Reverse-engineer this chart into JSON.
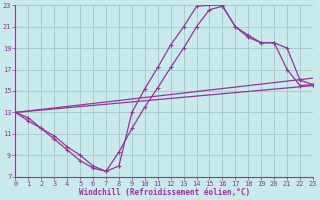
{
  "xlabel": "Windchill (Refroidissement éolien,°C)",
  "bg_color": "#c8eaea",
  "grid_color": "#aacccc",
  "line_color": "#993399",
  "xlim": [
    0,
    23
  ],
  "ylim": [
    7,
    23
  ],
  "xticks": [
    0,
    1,
    2,
    3,
    4,
    5,
    6,
    7,
    8,
    9,
    10,
    11,
    12,
    13,
    14,
    15,
    16,
    17,
    18,
    19,
    20,
    21,
    22,
    23
  ],
  "yticks": [
    7,
    9,
    11,
    13,
    15,
    17,
    19,
    21,
    23
  ],
  "curve1_x": [
    0,
    1,
    2,
    3,
    4,
    5,
    6,
    7,
    8,
    9,
    10,
    11,
    12,
    13,
    14,
    15,
    16,
    17,
    18,
    19,
    20,
    21,
    22,
    23
  ],
  "curve1_y": [
    13,
    12.5,
    11.5,
    10.5,
    9.5,
    8.5,
    7.8,
    7.5,
    8.0,
    13.0,
    15.2,
    17.2,
    19.3,
    21.0,
    22.9,
    23.0,
    23.0,
    21.0,
    20.0,
    19.5,
    19.5,
    19.0,
    16.0,
    15.6
  ],
  "curve2_x": [
    0,
    1,
    2,
    3,
    4,
    5,
    6,
    7,
    8,
    9,
    10,
    11,
    12,
    13,
    14,
    15,
    16,
    17,
    18,
    19,
    20,
    21,
    22,
    23
  ],
  "curve2_y": [
    13,
    12.2,
    11.5,
    10.8,
    9.8,
    9.0,
    8.0,
    7.5,
    9.3,
    11.5,
    13.5,
    15.3,
    17.2,
    19.0,
    21.0,
    22.6,
    22.9,
    21.0,
    20.2,
    19.5,
    19.5,
    17.0,
    15.5,
    15.6
  ],
  "line1_x": [
    0,
    23
  ],
  "line1_y": [
    13.0,
    15.5
  ],
  "line2_x": [
    0,
    23
  ],
  "line2_y": [
    13.0,
    16.2
  ]
}
